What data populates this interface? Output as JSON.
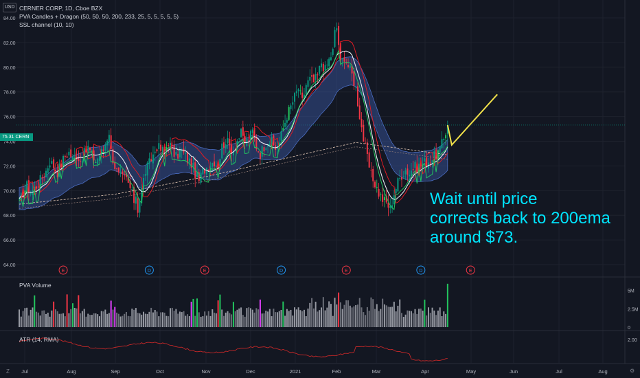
{
  "header": {
    "currency": "USD",
    "symbol_line": "CERNER CORP, 1D, Cboe BZX",
    "indicator_1": "PVA Candles + Dragon (50, 50, 50, 200, 233, 25, 5, 5, 5, 5, 5)",
    "indicator_2": "SSL channel (10, 10)"
  },
  "price_tag": {
    "value": "75.31",
    "symbol": "CERN",
    "color": "#089981"
  },
  "annotation_text": [
    "Wait until price",
    "corrects back to 200ema",
    "around $73."
  ],
  "panes": {
    "volume_title": "PVA Volume",
    "atr_title": "ATR (14, RMA)"
  },
  "corner_labels": {
    "left": "Z",
    "right": "⚙"
  },
  "colors": {
    "background": "#131722",
    "grid": "#1e222d",
    "bull": "#089981",
    "bear": "#f23645",
    "climax_bull": "#22c55e",
    "climax_bear": "#f23645",
    "neutral": "#9598a1",
    "magenta": "#e040fb",
    "band": "#3b5aa8",
    "ssl_up": "#22c55e",
    "ssl_down": "#e01b24",
    "ema_white": "#e9edf3",
    "ema200": "#d1b9a8",
    "atr": "#c62828",
    "annotation": "#00e5ff",
    "arrow": "#f0e04a"
  },
  "chart_data": {
    "type": "candlestick",
    "title": "CERNER CORP, 1D, Cboe BZX",
    "price_axis": {
      "ylim": [
        64,
        86
      ],
      "ticks": [
        "64.00",
        "66.00",
        "68.00",
        "70.00",
        "72.00",
        "74.00",
        "76.00",
        "78.00",
        "80.00",
        "82.00",
        "84.00"
      ],
      "last_price": "75.31"
    },
    "x_axis": {
      "labels": [
        "Jul",
        "Aug",
        "Sep",
        "Oct",
        "Nov",
        "Dec",
        "2021",
        "Feb",
        "Mar",
        "Apr",
        "May",
        "Jun",
        "Jul",
        "Aug"
      ]
    },
    "price_path": [
      [
        0,
        69.0
      ],
      [
        2,
        69.8
      ],
      [
        4,
        70.4
      ],
      [
        6,
        69.9
      ],
      [
        8,
        70.2
      ],
      [
        10,
        70.6
      ],
      [
        12,
        71.1
      ],
      [
        14,
        71.6
      ],
      [
        16,
        72.4
      ],
      [
        18,
        72.0
      ],
      [
        20,
        71.5
      ],
      [
        22,
        72.2
      ],
      [
        24,
        72.8
      ],
      [
        26,
        73.1
      ],
      [
        28,
        72.6
      ],
      [
        30,
        72.9
      ],
      [
        32,
        72.5
      ],
      [
        34,
        73.0
      ],
      [
        36,
        73.5
      ],
      [
        38,
        72.9
      ],
      [
        40,
        72.4
      ],
      [
        42,
        72.9
      ],
      [
        44,
        73.3
      ],
      [
        46,
        74.3
      ],
      [
        47,
        74.8
      ],
      [
        48,
        73.2
      ],
      [
        50,
        72.0
      ],
      [
        52,
        71.2
      ],
      [
        54,
        71.0
      ],
      [
        56,
        70.9
      ],
      [
        58,
        70.2
      ],
      [
        60,
        69.2
      ],
      [
        61,
        69.7
      ],
      [
        62,
        68.5
      ],
      [
        64,
        70.1
      ],
      [
        66,
        71.6
      ],
      [
        68,
        72.2
      ],
      [
        70,
        72.9
      ],
      [
        72,
        73.6
      ],
      [
        74,
        73.3
      ],
      [
        76,
        73.2
      ],
      [
        78,
        74.0
      ],
      [
        80,
        73.3
      ],
      [
        82,
        72.7
      ],
      [
        84,
        73.2
      ],
      [
        86,
        73.0
      ],
      [
        88,
        72.5
      ],
      [
        90,
        72.2
      ],
      [
        92,
        71.4
      ],
      [
        94,
        70.8
      ],
      [
        96,
        71.6
      ],
      [
        98,
        71.9
      ],
      [
        100,
        72.2
      ],
      [
        102,
        72.4
      ],
      [
        104,
        72.0
      ],
      [
        106,
        73.6
      ],
      [
        108,
        74.1
      ],
      [
        110,
        73.6
      ],
      [
        112,
        73.3
      ],
      [
        114,
        74.1
      ],
      [
        116,
        74.6
      ],
      [
        118,
        73.9
      ],
      [
        120,
        74.2
      ],
      [
        122,
        74.8
      ],
      [
        124,
        73.6
      ],
      [
        126,
        73.0
      ],
      [
        128,
        73.6
      ],
      [
        130,
        74.1
      ],
      [
        132,
        73.9
      ],
      [
        134,
        73.4
      ],
      [
        136,
        73.9
      ],
      [
        138,
        75.1
      ],
      [
        140,
        76.1
      ],
      [
        142,
        76.8
      ],
      [
        144,
        77.6
      ],
      [
        146,
        78.3
      ],
      [
        148,
        77.2
      ],
      [
        150,
        78.6
      ],
      [
        152,
        79.0
      ],
      [
        154,
        78.8
      ],
      [
        156,
        79.3
      ],
      [
        158,
        80.4
      ],
      [
        160,
        79.8
      ],
      [
        162,
        80.6
      ],
      [
        164,
        81.3
      ],
      [
        165,
        82.8
      ],
      [
        166,
        83.2
      ],
      [
        167,
        81.9
      ],
      [
        168,
        80.3
      ],
      [
        170,
        80.9
      ],
      [
        172,
        80.1
      ],
      [
        174,
        79.4
      ],
      [
        176,
        78.3
      ],
      [
        178,
        76.1
      ],
      [
        180,
        74.2
      ],
      [
        182,
        72.6
      ],
      [
        184,
        71.2
      ],
      [
        186,
        70.6
      ],
      [
        188,
        69.8
      ],
      [
        190,
        69.3
      ],
      [
        192,
        69.0
      ],
      [
        194,
        68.5
      ],
      [
        196,
        69.8
      ],
      [
        198,
        70.7
      ],
      [
        200,
        71.3
      ],
      [
        202,
        71.7
      ],
      [
        204,
        71.4
      ],
      [
        206,
        71.9
      ],
      [
        208,
        71.9
      ],
      [
        210,
        72.1
      ],
      [
        212,
        72.3
      ],
      [
        214,
        72.4
      ],
      [
        216,
        72.6
      ],
      [
        218,
        72.9
      ],
      [
        220,
        73.3
      ],
      [
        222,
        74.2
      ],
      [
        224,
        75.3
      ]
    ],
    "ema200": [
      [
        0,
        68.9
      ],
      [
        50,
        69.7
      ],
      [
        100,
        71.2
      ],
      [
        150,
        73.0
      ],
      [
        176,
        73.9
      ],
      [
        200,
        73.4
      ],
      [
        224,
        72.9
      ]
    ],
    "projection": [
      [
        224,
        73.7
      ],
      [
        250,
        77.8
      ]
    ],
    "volume_pane": {
      "ticks": [
        "5M",
        "2.5M",
        "0"
      ],
      "ylim": [
        0,
        6.2
      ]
    },
    "atr_pane": {
      "ticks": [
        "2.00"
      ]
    },
    "event_markers": [
      {
        "label": "E",
        "color": "#f23645",
        "bar": 23
      },
      {
        "label": "D",
        "color": "#2196f3",
        "bar": 68
      },
      {
        "label": "E",
        "color": "#f23645",
        "bar": 97
      },
      {
        "label": "D",
        "color": "#2196f3",
        "bar": 137
      },
      {
        "label": "E",
        "color": "#f23645",
        "bar": 171
      },
      {
        "label": "D",
        "color": "#2196f3",
        "bar": 210
      },
      {
        "label": "E",
        "color": "#f23645",
        "bar": 236
      }
    ]
  }
}
